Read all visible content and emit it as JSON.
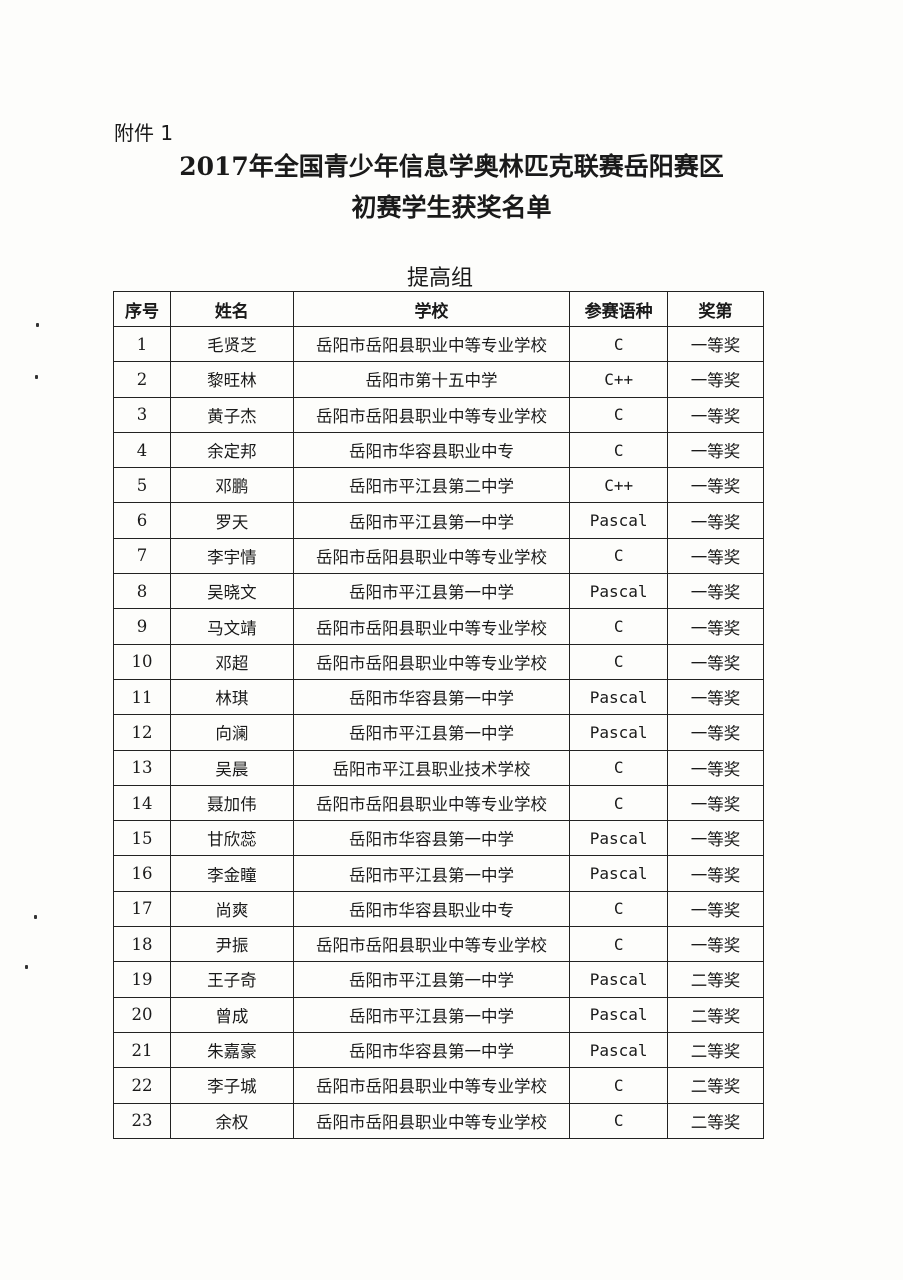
{
  "attachment_label": "附件 1",
  "title_line1": "2017年全国青少年信息学奥林匹克联赛岳阳赛区",
  "title_line2": "初赛学生获奖名单",
  "group_title": "提高组",
  "table": {
    "headers": [
      "序号",
      "姓名",
      "学校",
      "参赛语种",
      "奖第"
    ],
    "rows": [
      [
        "1",
        "毛贤芝",
        "岳阳市岳阳县职业中等专业学校",
        "C",
        "一等奖"
      ],
      [
        "2",
        "黎旺林",
        "岳阳市第十五中学",
        "C++",
        "一等奖"
      ],
      [
        "3",
        "黄子杰",
        "岳阳市岳阳县职业中等专业学校",
        "C",
        "一等奖"
      ],
      [
        "4",
        "余定邦",
        "岳阳市华容县职业中专",
        "C",
        "一等奖"
      ],
      [
        "5",
        "邓鹏",
        "岳阳市平江县第二中学",
        "C++",
        "一等奖"
      ],
      [
        "6",
        "罗天",
        "岳阳市平江县第一中学",
        "Pascal",
        "一等奖"
      ],
      [
        "7",
        "李宇情",
        "岳阳市岳阳县职业中等专业学校",
        "C",
        "一等奖"
      ],
      [
        "8",
        "吴晓文",
        "岳阳市平江县第一中学",
        "Pascal",
        "一等奖"
      ],
      [
        "9",
        "马文靖",
        "岳阳市岳阳县职业中等专业学校",
        "C",
        "一等奖"
      ],
      [
        "10",
        "邓超",
        "岳阳市岳阳县职业中等专业学校",
        "C",
        "一等奖"
      ],
      [
        "11",
        "林琪",
        "岳阳市华容县第一中学",
        "Pascal",
        "一等奖"
      ],
      [
        "12",
        "向澜",
        "岳阳市平江县第一中学",
        "Pascal",
        "一等奖"
      ],
      [
        "13",
        "吴晨",
        "岳阳市平江县职业技术学校",
        "C",
        "一等奖"
      ],
      [
        "14",
        "聂加伟",
        "岳阳市岳阳县职业中等专业学校",
        "C",
        "一等奖"
      ],
      [
        "15",
        "甘欣蕊",
        "岳阳市华容县第一中学",
        "Pascal",
        "一等奖"
      ],
      [
        "16",
        "李金瞳",
        "岳阳市平江县第一中学",
        "Pascal",
        "一等奖"
      ],
      [
        "17",
        "尚爽",
        "岳阳市华容县职业中专",
        "C",
        "一等奖"
      ],
      [
        "18",
        "尹振",
        "岳阳市岳阳县职业中等专业学校",
        "C",
        "一等奖"
      ],
      [
        "19",
        "王子奇",
        "岳阳市平江县第一中学",
        "Pascal",
        "二等奖"
      ],
      [
        "20",
        "曾成",
        "岳阳市平江县第一中学",
        "Pascal",
        "二等奖"
      ],
      [
        "21",
        "朱嘉豪",
        "岳阳市华容县第一中学",
        "Pascal",
        "二等奖"
      ],
      [
        "22",
        "李子城",
        "岳阳市岳阳县职业中等专业学校",
        "C",
        "二等奖"
      ],
      [
        "23",
        "余权",
        "岳阳市岳阳县职业中等专业学校",
        "C",
        "二等奖"
      ]
    ]
  }
}
